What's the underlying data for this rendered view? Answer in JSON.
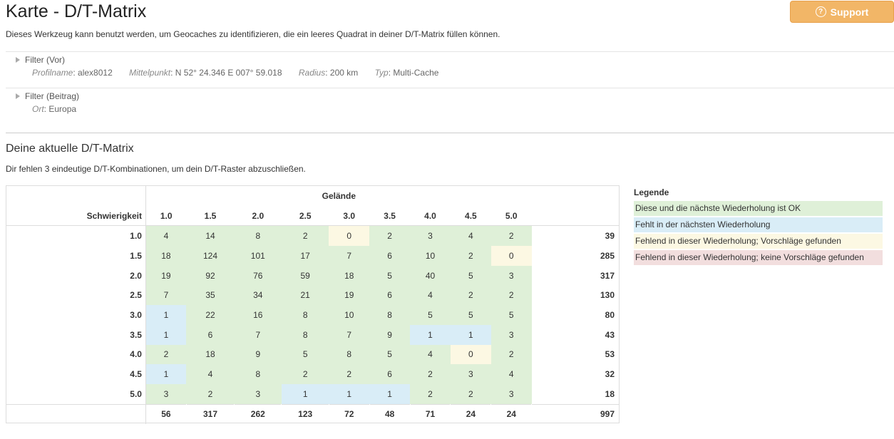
{
  "header": {
    "title": "Karte - D/T-Matrix",
    "support_label": "Support",
    "support_icon": "question-icon",
    "intro": "Dieses Werkzeug kann benutzt werden, um Geocaches zu identifizieren, die ein leeres Quadrat in deiner D/T-Matrix füllen können."
  },
  "filters": {
    "vor": {
      "label": "Filter (Vor)",
      "items": [
        {
          "key": "Profilname",
          "value": "alex8012"
        },
        {
          "key": "Mittelpunkt",
          "value": "N 52° 24.346 E 007° 59.018"
        },
        {
          "key": "Radius",
          "value": "200 km"
        },
        {
          "key": "Typ",
          "value": "Multi-Cache"
        }
      ]
    },
    "beitrag": {
      "label": "Filter (Beitrag)",
      "items": [
        {
          "key": "Ort",
          "value": "Europa"
        }
      ]
    }
  },
  "matrix": {
    "title": "Deine aktuelle D/T-Matrix",
    "subtitle": "Dir fehlen 3 eindeutige D/T-Kombinationen, um dein D/T-Raster abzuschließen.",
    "terrain_label": "Gelände",
    "difficulty_label": "Schwierigkeit",
    "columns": [
      "1.0",
      "1.5",
      "2.0",
      "2.5",
      "3.0",
      "3.5",
      "4.0",
      "4.5",
      "5.0"
    ],
    "rows": [
      {
        "label": "1.0",
        "cells": [
          4,
          14,
          8,
          2,
          0,
          2,
          3,
          4,
          2
        ],
        "total": 39
      },
      {
        "label": "1.5",
        "cells": [
          18,
          124,
          101,
          17,
          7,
          6,
          10,
          2,
          0
        ],
        "total": 285
      },
      {
        "label": "2.0",
        "cells": [
          19,
          92,
          76,
          59,
          18,
          5,
          40,
          5,
          3
        ],
        "total": 317
      },
      {
        "label": "2.5",
        "cells": [
          7,
          35,
          34,
          21,
          19,
          6,
          4,
          2,
          2
        ],
        "total": 130
      },
      {
        "label": "3.0",
        "cells": [
          1,
          22,
          16,
          8,
          10,
          8,
          5,
          5,
          5
        ],
        "total": 80
      },
      {
        "label": "3.5",
        "cells": [
          1,
          6,
          7,
          8,
          7,
          9,
          1,
          1,
          3
        ],
        "total": 43
      },
      {
        "label": "4.0",
        "cells": [
          2,
          18,
          9,
          5,
          8,
          5,
          4,
          0,
          2
        ],
        "total": 53
      },
      {
        "label": "4.5",
        "cells": [
          1,
          4,
          8,
          2,
          2,
          6,
          2,
          3,
          4
        ],
        "total": 32
      },
      {
        "label": "5.0",
        "cells": [
          3,
          2,
          3,
          1,
          1,
          1,
          2,
          2,
          3
        ],
        "total": 18
      }
    ],
    "column_totals": [
      56,
      317,
      262,
      123,
      72,
      48,
      71,
      24,
      24
    ],
    "grand_total": 997
  },
  "legend": {
    "title": "Legende",
    "items": [
      {
        "label": "Diese und die nächste Wiederholung ist OK",
        "color": "#dff0d8"
      },
      {
        "label": "Fehlt in der nächsten Wiederholung",
        "color": "#d9edf7"
      },
      {
        "label": "Fehlend in dieser Wiederholung; Vorschläge gefunden",
        "color": "#fcf8e3"
      },
      {
        "label": "Fehlend in dieser Wiederholung; keine Vorschläge gefunden",
        "color": "#f2dede"
      }
    ]
  }
}
